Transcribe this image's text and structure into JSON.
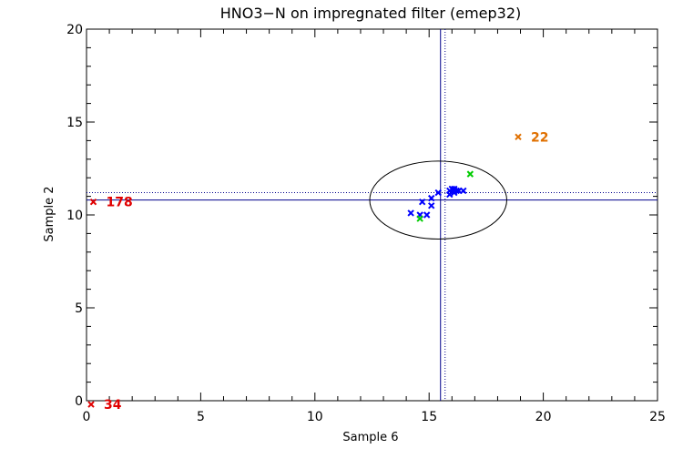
{
  "chart_data": {
    "type": "scatter",
    "title": "HNO3−N on impregnated filter (emep32)",
    "xlabel": "Sample 6",
    "ylabel": "Sample 2",
    "xlim": [
      0,
      25
    ],
    "ylim": [
      0,
      20
    ],
    "xticks": [
      0,
      5,
      10,
      15,
      20,
      25
    ],
    "yticks": [
      0,
      5,
      10,
      15,
      20
    ],
    "grid": false,
    "reference_lines": {
      "solid_x": 15.5,
      "dotted_x": 15.7,
      "solid_y": 10.8,
      "dotted_y": 11.2
    },
    "ellipse": {
      "center_x": 15.4,
      "center_y": 10.8,
      "semi_axis_x": 3.0,
      "semi_axis_y": 2.1
    },
    "series": [
      {
        "color": "#0000ff",
        "marker": "x",
        "points": [
          [
            14.2,
            10.1
          ],
          [
            14.6,
            10.0
          ],
          [
            14.7,
            10.7
          ],
          [
            14.9,
            10.0
          ],
          [
            15.1,
            10.9
          ],
          [
            15.1,
            10.5
          ],
          [
            15.4,
            11.2
          ],
          [
            15.9,
            11.3
          ],
          [
            16.0,
            11.4
          ],
          [
            15.9,
            11.1
          ],
          [
            16.1,
            11.4
          ],
          [
            16.1,
            11.2
          ],
          [
            16.2,
            11.3
          ],
          [
            16.3,
            11.3
          ],
          [
            16.5,
            11.3
          ]
        ]
      },
      {
        "color": "#00cc00",
        "marker": "x",
        "points": [
          [
            14.6,
            9.8
          ],
          [
            16.8,
            12.2
          ]
        ]
      }
    ],
    "outliers": [
      {
        "x": 18.9,
        "y": 14.2,
        "label": "22",
        "color": "#e07000"
      },
      {
        "x": 0.3,
        "y": 10.7,
        "label": "178",
        "color": "#e00000"
      },
      {
        "x": 0.2,
        "y": -0.2,
        "label": "34",
        "color": "#e00000"
      }
    ]
  }
}
